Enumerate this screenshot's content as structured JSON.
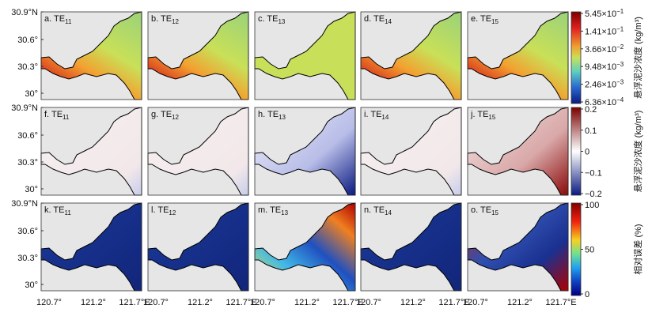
{
  "panels": [
    {
      "label": "a. TE",
      "subscript": "11"
    },
    {
      "label": "b. TE",
      "subscript": "12"
    },
    {
      "label": "c. TE",
      "subscript": "13"
    },
    {
      "label": "d. TE",
      "subscript": "14"
    },
    {
      "label": "e. TE",
      "subscript": "15"
    },
    {
      "label": "f. TE",
      "subscript": "11"
    },
    {
      "label": "g. TE",
      "subscript": "12"
    },
    {
      "label": "h. TE",
      "subscript": "13"
    },
    {
      "label": "i. TE",
      "subscript": "14"
    },
    {
      "label": "j. TE",
      "subscript": "15"
    },
    {
      "label": "k. TE",
      "subscript": "11"
    },
    {
      "label": "l. TE",
      "subscript": "12"
    },
    {
      "label": "m. TE",
      "subscript": "13"
    },
    {
      "label": "n. TE",
      "subscript": "14"
    },
    {
      "label": "o. TE",
      "subscript": "15"
    }
  ],
  "y_axis": [
    [
      "30.9°N",
      "30.6°",
      "30.3°",
      "30°"
    ],
    [
      "30.9°N",
      "30.6°",
      "30.3°",
      "30°"
    ],
    [
      "30.9°N",
      "30.6°",
      "30.3°",
      "30°"
    ]
  ],
  "x_axis": [
    [
      "120.7°",
      "121.2°",
      "121.7°E"
    ],
    [
      "120.7°",
      "121.2°",
      "121.7°E"
    ],
    [
      "120.7°",
      "121.2°",
      "121.7°E"
    ],
    [
      "120.7°",
      "121.2°",
      "121.7°E"
    ],
    [
      "120.7°",
      "121.2°",
      "121.7°E"
    ]
  ],
  "colorbars": [
    {
      "title": "悬浮泥沙浓度 (kg/m³)",
      "ticks": [
        {
          "base": "5.45×10",
          "exponent": "−1"
        },
        {
          "base": "1.41×10",
          "exponent": "−1"
        },
        {
          "base": "3.66×10",
          "exponent": "−2"
        },
        {
          "base": "9.48×10",
          "exponent": "−3"
        },
        {
          "base": "2.46×10",
          "exponent": "−3"
        },
        {
          "base": "6.36×10",
          "exponent": "−4"
        }
      ]
    },
    {
      "title": "悬浮泥沙浓度 (kg/m³)",
      "ticks": [
        "0.2",
        "0.1",
        "0",
        "−0.1",
        "−0.2"
      ]
    },
    {
      "title": "相对误差 (%)",
      "ticks": [
        "100",
        "50",
        "0"
      ]
    }
  ]
}
